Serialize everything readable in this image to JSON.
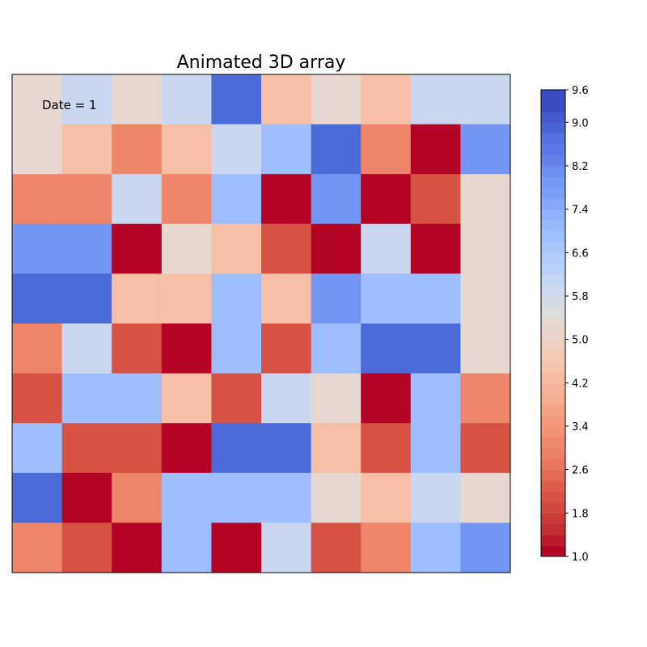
{
  "chart_data": {
    "type": "heatmap",
    "title": "Animated 3D array",
    "annotation": {
      "label": "Date",
      "value": 1,
      "text": "Date = 1"
    },
    "colormap": "coolwarm_r",
    "rows": 10,
    "cols": 10,
    "values": [
      [
        5,
        6,
        5,
        6,
        9,
        4,
        5,
        4,
        6,
        6
      ],
      [
        5,
        4,
        3,
        4,
        6,
        7,
        9,
        3,
        1,
        8
      ],
      [
        3,
        3,
        6,
        3,
        7,
        1,
        8,
        1,
        2,
        5
      ],
      [
        8,
        8,
        1,
        5,
        4,
        2,
        1,
        6,
        1,
        5
      ],
      [
        9,
        9,
        4,
        4,
        7,
        4,
        8,
        7,
        7,
        5
      ],
      [
        3,
        6,
        2,
        1,
        7,
        2,
        7,
        9,
        9,
        5
      ],
      [
        2,
        7,
        7,
        4,
        2,
        6,
        5,
        1,
        7,
        3
      ],
      [
        7,
        2,
        2,
        1,
        9,
        9,
        4,
        2,
        7,
        2
      ],
      [
        9,
        1,
        3,
        7,
        7,
        7,
        5,
        4,
        6,
        5
      ],
      [
        3,
        2,
        1,
        7,
        1,
        6,
        2,
        3,
        7,
        8
      ]
    ],
    "value_colors": {
      "1": "#b40426",
      "2": "#d65244",
      "3": "#ee8468",
      "4": "#f6bfa6",
      "5": "#e6d8d1",
      "6": "#c9d7f0",
      "7": "#9ebeff",
      "8": "#7396f5",
      "9": "#4b6bd9"
    },
    "colorbar": {
      "vmin": 1.0,
      "vmax": 9.6,
      "ticks": [
        "1.0",
        "1.8",
        "2.6",
        "3.4",
        "4.2",
        "5.0",
        "5.8",
        "6.6",
        "7.4",
        "8.2",
        "9.0",
        "9.6"
      ],
      "tick_values": [
        1.0,
        1.8,
        2.6,
        3.4,
        4.2,
        5.0,
        5.8,
        6.6,
        7.4,
        8.2,
        9.0,
        9.6
      ],
      "band_colors": [
        "#b40426",
        "#bb1b2c",
        "#c32e31",
        "#ca3b37",
        "#d1493f",
        "#d75445",
        "#dc5d4a",
        "#e26952",
        "#e8765c",
        "#ec8165",
        "#ef886b",
        "#f29274",
        "#f49a7b",
        "#f6a385",
        "#f6ac8e",
        "#f7b396",
        "#f6bca1",
        "#f4c5ad",
        "#f2cab5",
        "#eed0c0",
        "#e9d5cb",
        "#e5d8d1",
        "#dcdddd",
        "#d5dbe5",
        "#cdd9ec",
        "#c5d6f2",
        "#bad0f8",
        "#b2ccfb",
        "#a9c6fd",
        "#a1c0ff",
        "#97b8ff",
        "#8fb1fe",
        "#85a8fc",
        "#7b9ff9",
        "#7597f6",
        "#6c8ff1",
        "#6282ea",
        "#5b7ae5",
        "#5572df",
        "#4b64d5",
        "#4358cb",
        "#3b4cc0",
        "#3b4cc0"
      ]
    }
  }
}
